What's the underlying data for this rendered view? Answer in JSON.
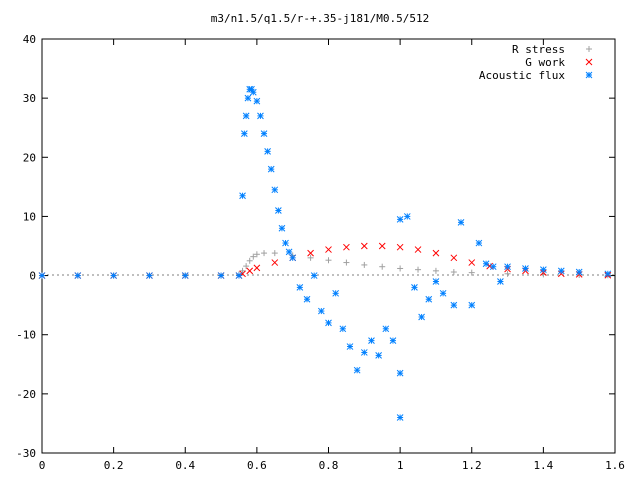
{
  "chart_data": {
    "type": "scatter",
    "title": "m3/n1.5/q1.5/r-+.35-j181/M0.5/512",
    "xlabel": "",
    "ylabel": "",
    "xlim": [
      0,
      1.6
    ],
    "ylim": [
      -30,
      40
    ],
    "x_ticks": [
      "0",
      "0.2",
      "0.4",
      "0.6",
      "0.8",
      "1",
      "1.2",
      "1.4",
      "1.6"
    ],
    "y_ticks": [
      "40",
      "30",
      "20",
      "10",
      "0",
      "-10",
      "-20",
      "-30"
    ],
    "grid": false,
    "legend_position": "top-right",
    "series": [
      {
        "name": "R stress",
        "marker": "plus",
        "color": "#a0a0a0",
        "points": [
          [
            0.0,
            0
          ],
          [
            0.1,
            0
          ],
          [
            0.2,
            0
          ],
          [
            0.3,
            0
          ],
          [
            0.4,
            0
          ],
          [
            0.5,
            0
          ],
          [
            0.55,
            0.2
          ],
          [
            0.56,
            0.8
          ],
          [
            0.57,
            1.6
          ],
          [
            0.58,
            2.5
          ],
          [
            0.59,
            3.2
          ],
          [
            0.6,
            3.6
          ],
          [
            0.62,
            3.8
          ],
          [
            0.65,
            3.8
          ],
          [
            0.7,
            3.4
          ],
          [
            0.75,
            3.0
          ],
          [
            0.8,
            2.6
          ],
          [
            0.85,
            2.2
          ],
          [
            0.9,
            1.8
          ],
          [
            0.95,
            1.5
          ],
          [
            1.0,
            1.2
          ],
          [
            1.05,
            1.0
          ],
          [
            1.1,
            0.8
          ],
          [
            1.15,
            0.6
          ],
          [
            1.2,
            0.5
          ],
          [
            1.3,
            0.3
          ],
          [
            1.4,
            0.2
          ],
          [
            1.5,
            0.1
          ],
          [
            1.58,
            0.05
          ]
        ]
      },
      {
        "name": "G work",
        "marker": "cross",
        "color": "#ff0000",
        "points": [
          [
            0.0,
            0
          ],
          [
            0.1,
            0
          ],
          [
            0.2,
            0
          ],
          [
            0.3,
            0
          ],
          [
            0.4,
            0
          ],
          [
            0.5,
            0
          ],
          [
            0.55,
            0
          ],
          [
            0.56,
            0.3
          ],
          [
            0.58,
            0.8
          ],
          [
            0.6,
            1.3
          ],
          [
            0.65,
            2.2
          ],
          [
            0.7,
            3.0
          ],
          [
            0.75,
            3.8
          ],
          [
            0.8,
            4.4
          ],
          [
            0.85,
            4.8
          ],
          [
            0.9,
            5.0
          ],
          [
            0.95,
            5.0
          ],
          [
            1.0,
            4.8
          ],
          [
            1.05,
            4.4
          ],
          [
            1.1,
            3.8
          ],
          [
            1.15,
            3.0
          ],
          [
            1.2,
            2.2
          ],
          [
            1.25,
            1.6
          ],
          [
            1.3,
            1.1
          ],
          [
            1.35,
            0.8
          ],
          [
            1.4,
            0.5
          ],
          [
            1.45,
            0.3
          ],
          [
            1.5,
            0.2
          ],
          [
            1.58,
            0.05
          ]
        ]
      },
      {
        "name": "Acoustic flux",
        "marker": "star",
        "color": "#0080ff",
        "points": [
          [
            0.0,
            0
          ],
          [
            0.1,
            0
          ],
          [
            0.2,
            0
          ],
          [
            0.3,
            0
          ],
          [
            0.4,
            0
          ],
          [
            0.5,
            0
          ],
          [
            0.55,
            0
          ],
          [
            0.56,
            13.5
          ],
          [
            0.565,
            24
          ],
          [
            0.57,
            27
          ],
          [
            0.575,
            30
          ],
          [
            0.58,
            31.5
          ],
          [
            0.585,
            31.5
          ],
          [
            0.59,
            31
          ],
          [
            0.6,
            29.5
          ],
          [
            0.61,
            27
          ],
          [
            0.62,
            24
          ],
          [
            0.63,
            21
          ],
          [
            0.64,
            18
          ],
          [
            0.65,
            14.5
          ],
          [
            0.66,
            11
          ],
          [
            0.67,
            8
          ],
          [
            0.68,
            5.5
          ],
          [
            0.69,
            4
          ],
          [
            0.7,
            3
          ],
          [
            0.72,
            -2
          ],
          [
            0.74,
            -4
          ],
          [
            0.76,
            0
          ],
          [
            0.78,
            -6
          ],
          [
            0.8,
            -8
          ],
          [
            0.82,
            -3
          ],
          [
            0.84,
            -9
          ],
          [
            0.86,
            -12
          ],
          [
            0.88,
            -16
          ],
          [
            0.9,
            -13
          ],
          [
            0.92,
            -11
          ],
          [
            0.94,
            -13.5
          ],
          [
            0.96,
            -9
          ],
          [
            0.98,
            -11
          ],
          [
            1.0,
            -16.5
          ],
          [
            1.0,
            -24
          ],
          [
            1.0,
            9.5
          ],
          [
            1.02,
            10
          ],
          [
            1.04,
            -2
          ],
          [
            1.06,
            -7
          ],
          [
            1.08,
            -4
          ],
          [
            1.1,
            -1
          ],
          [
            1.12,
            -3
          ],
          [
            1.15,
            -5
          ],
          [
            1.17,
            9
          ],
          [
            1.2,
            -5
          ],
          [
            1.22,
            5.5
          ],
          [
            1.24,
            2
          ],
          [
            1.26,
            1.5
          ],
          [
            1.28,
            -1
          ],
          [
            1.3,
            1.5
          ],
          [
            1.35,
            1.2
          ],
          [
            1.4,
            1.0
          ],
          [
            1.45,
            0.8
          ],
          [
            1.5,
            0.6
          ],
          [
            1.58,
            0.3
          ]
        ]
      }
    ]
  }
}
